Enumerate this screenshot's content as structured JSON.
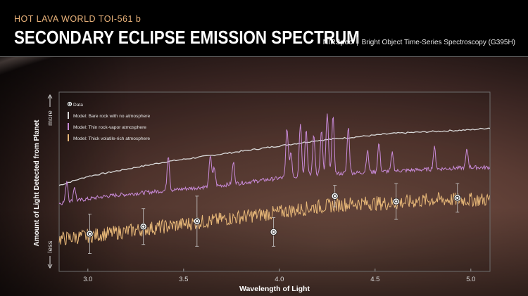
{
  "header": {
    "subtitle": "HOT LAVA WORLD TOI-561 b",
    "title": "SECONDARY ECLIPSE EMISSION SPECTRUM",
    "instrument": "NIRSpec",
    "mode": "Bright Object Time-Series Spectroscopy (G395H)"
  },
  "colors": {
    "data": "#ffffff",
    "bare_rock": "#d9d9d9",
    "thin_atmosphere": "#c88ad8",
    "thick_atmosphere": "#e8b878",
    "title_accent": "#e9b27a"
  },
  "chart_data": {
    "type": "line",
    "xlabel": "Wavelength of Light",
    "ylabel": "Amount of Light Detected from Planet",
    "y_more_label": "more",
    "y_less_label": "less",
    "xlim": [
      2.85,
      5.1
    ],
    "ylim": [
      0,
      100
    ],
    "x_ticks": [
      3.0,
      3.5,
      4.0,
      4.5,
      5.0
    ],
    "x_tick_labels": [
      "3.0",
      "3.5",
      "4.0",
      "4.5",
      "5.0"
    ],
    "legend": {
      "placement": "top-left",
      "entries": [
        "Data",
        "Model: Bare rock with no atmosphere",
        "Model: Thin rock-vapor atmosphere",
        "Model: Thick volatile-rich atmosphere"
      ]
    },
    "data_points": [
      {
        "x": 3.01,
        "y": 21,
        "err": 11
      },
      {
        "x": 3.29,
        "y": 25,
        "err": 10
      },
      {
        "x": 3.57,
        "y": 28,
        "err": 14
      },
      {
        "x": 3.97,
        "y": 22,
        "err": 8
      },
      {
        "x": 4.29,
        "y": 42,
        "err": 6
      },
      {
        "x": 4.61,
        "y": 39,
        "err": 10
      },
      {
        "x": 4.93,
        "y": 41,
        "err": 8
      }
    ],
    "series": [
      {
        "key": "bare_rock",
        "x": [
          2.85,
          3.0,
          3.2,
          3.4,
          3.6,
          3.8,
          4.0,
          4.2,
          4.4,
          4.6,
          4.8,
          5.0,
          5.1
        ],
        "y": [
          48,
          53,
          57,
          61,
          64,
          67,
          70,
          73,
          75,
          77,
          78,
          79,
          80
        ]
      },
      {
        "key": "thin_atmosphere",
        "baseline_x": [
          2.85,
          3.1,
          3.4,
          3.7,
          4.0,
          4.2,
          4.4,
          4.6,
          4.8,
          5.0,
          5.1
        ],
        "baseline_y": [
          38,
          42,
          45,
          48,
          52,
          54,
          55,
          56,
          57,
          58,
          58
        ],
        "peaks_x": [
          2.89,
          2.93,
          3.42,
          3.64,
          3.66,
          3.76,
          4.04,
          4.06,
          4.11,
          4.14,
          4.18,
          4.22,
          4.25,
          4.28,
          4.36,
          4.46,
          4.52,
          4.59,
          4.81,
          4.98
        ],
        "peaks_h": [
          12,
          8,
          20,
          18,
          10,
          12,
          28,
          14,
          30,
          26,
          22,
          24,
          34,
          32,
          26,
          12,
          16,
          10,
          12,
          10
        ]
      },
      {
        "key": "thick_atmosphere",
        "baseline_x": [
          2.85,
          3.1,
          3.4,
          3.7,
          4.0,
          4.2,
          4.4,
          4.6,
          4.8,
          5.0,
          5.1
        ],
        "baseline_y": [
          18,
          21,
          25,
          29,
          33,
          36,
          38,
          38,
          40,
          40,
          40
        ],
        "noise_amp": 4
      }
    ]
  }
}
